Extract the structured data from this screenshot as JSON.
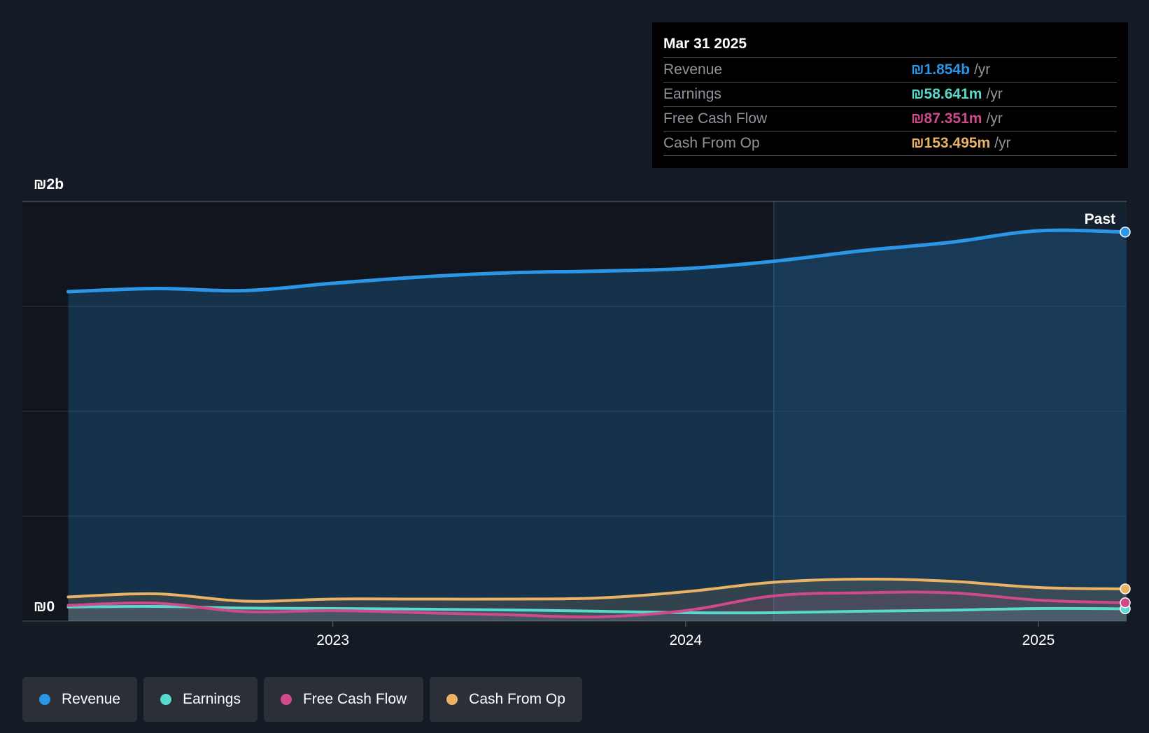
{
  "chart_data": {
    "type": "line",
    "title": "",
    "y_axis": {
      "ticks": [
        {
          "value": 2000,
          "label": "₪2b"
        },
        {
          "value": 0,
          "label": "₪0"
        }
      ],
      "ylim": [
        0,
        2000
      ]
    },
    "x_axis": {
      "ticks": [
        {
          "value": 2023.0,
          "label": "2023"
        },
        {
          "value": 2024.0,
          "label": "2024"
        },
        {
          "value": 2025.0,
          "label": "2025"
        }
      ],
      "xlim": [
        2022.12,
        2025.25
      ]
    },
    "past_label": "Past",
    "past_region_start": 2024.25,
    "grid": true,
    "legend_position": "bottom-left",
    "x": [
      2022.25,
      2022.5,
      2022.75,
      2023.0,
      2023.25,
      2023.5,
      2023.75,
      2024.0,
      2024.25,
      2024.5,
      2024.75,
      2025.0,
      2025.25
    ],
    "series": [
      {
        "name": "Revenue",
        "color": "#2b95e6",
        "values": [
          1570,
          1585,
          1575,
          1610,
          1640,
          1660,
          1668,
          1680,
          1715,
          1765,
          1805,
          1860,
          1854
        ]
      },
      {
        "name": "Earnings",
        "color": "#59d8cc",
        "values": [
          67,
          70,
          62,
          60,
          57,
          53,
          47,
          40,
          40,
          47,
          52,
          60,
          58.641
        ]
      },
      {
        "name": "Free Cash Flow",
        "color": "#d0498b",
        "values": [
          75,
          85,
          45,
          50,
          40,
          30,
          20,
          50,
          120,
          135,
          135,
          100,
          87.351
        ]
      },
      {
        "name": "Cash From Op",
        "color": "#eab264",
        "values": [
          115,
          130,
          95,
          105,
          105,
          105,
          110,
          140,
          185,
          200,
          190,
          160,
          153.495
        ]
      }
    ]
  },
  "tooltip": {
    "date": "Mar 31 2025",
    "rows": [
      {
        "label": "Revenue",
        "value": "₪1.854b",
        "unit": "/yr",
        "color": "#2b95e6"
      },
      {
        "label": "Earnings",
        "value": "₪58.641m",
        "unit": "/yr",
        "color": "#59d8cc"
      },
      {
        "label": "Free Cash Flow",
        "value": "₪87.351m",
        "unit": "/yr",
        "color": "#d0498b"
      },
      {
        "label": "Cash From Op",
        "value": "₪153.495m",
        "unit": "/yr",
        "color": "#eab264"
      }
    ]
  },
  "legend": [
    {
      "label": "Revenue",
      "color": "#2b95e6"
    },
    {
      "label": "Earnings",
      "color": "#59d8cc"
    },
    {
      "label": "Free Cash Flow",
      "color": "#d0498b"
    },
    {
      "label": "Cash From Op",
      "color": "#eab264"
    }
  ]
}
